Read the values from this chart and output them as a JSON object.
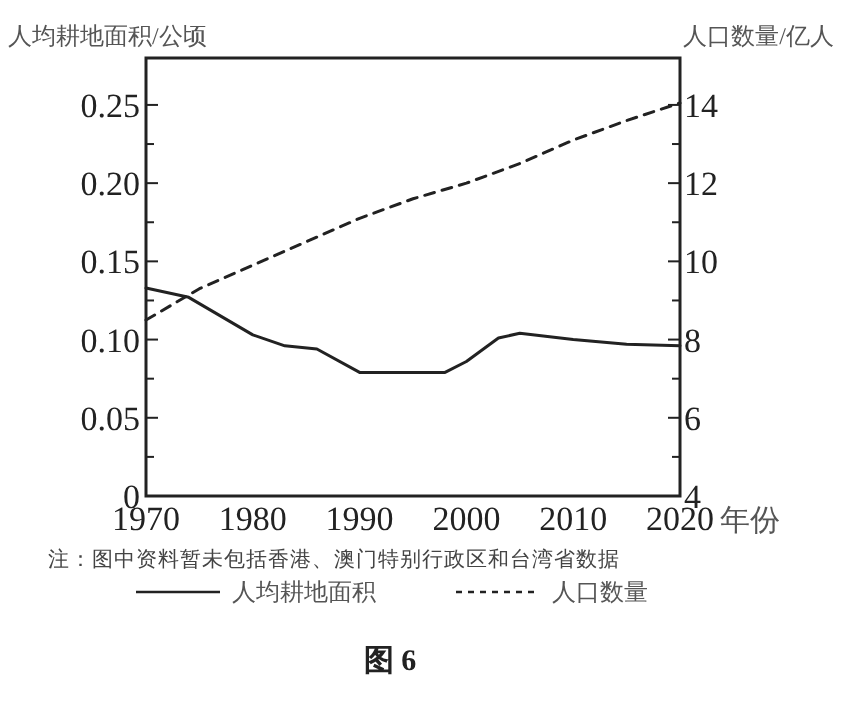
{
  "chart_data": {
    "type": "line",
    "ylabel": "人均耕地面积/公顷",
    "y2label": "人口数量/亿人",
    "xlabel": "年份",
    "annotations": [
      "注：图中资料暂未包括香港、澳门特别行政区和台湾省数据",
      "图 6"
    ],
    "xlim": [
      1970,
      2020
    ],
    "xticks": [
      1970,
      1980,
      1990,
      2000,
      2010,
      2020
    ],
    "ylim": [
      0,
      0.28
    ],
    "yticks": [
      0,
      {
        "value": 0.025,
        "label": null
      },
      0.05,
      {
        "value": 0.075,
        "label": null
      },
      {
        "value": 0.1,
        "label": "0.10"
      },
      {
        "value": 0.125,
        "label": null
      },
      0.15,
      {
        "value": 0.175,
        "label": null
      },
      {
        "value": 0.2,
        "label": "0.20"
      },
      {
        "value": 0.225,
        "label": null
      },
      0.25
    ],
    "y2lim": [
      4,
      15.2
    ],
    "y2ticks": [
      4,
      {
        "value": 5,
        "label": null
      },
      6,
      {
        "value": 7,
        "label": null
      },
      8,
      {
        "value": 9,
        "label": null
      },
      10,
      {
        "value": 11,
        "label": null
      },
      12,
      {
        "value": 13,
        "label": null
      },
      14
    ],
    "legend": "bottom",
    "grid": false,
    "marker": "none",
    "series": [
      {
        "name": "人均耕地面积",
        "color": "#222222",
        "line_style": "solid",
        "x": [
          1970,
          1974,
          1980,
          1983,
          1986,
          1990,
          1998,
          2000,
          2003,
          2005,
          2010,
          2015,
          2020
        ],
        "values": [
          0.133,
          0.127,
          0.103,
          0.096,
          0.094,
          0.079,
          0.079,
          0.086,
          0.101,
          0.104,
          0.1,
          0.097,
          0.096
        ]
      },
      {
        "name": "人口数量",
        "color": "#222222",
        "line_style": "dashed",
        "axis": "y2",
        "x": [
          1970,
          1975,
          1980,
          1985,
          1990,
          1995,
          2000,
          2005,
          2010,
          2015,
          2020
        ],
        "values": [
          8.5,
          9.3,
          9.9,
          10.5,
          11.1,
          11.6,
          12.0,
          12.5,
          13.1,
          13.6,
          14.05
        ]
      }
    ]
  }
}
